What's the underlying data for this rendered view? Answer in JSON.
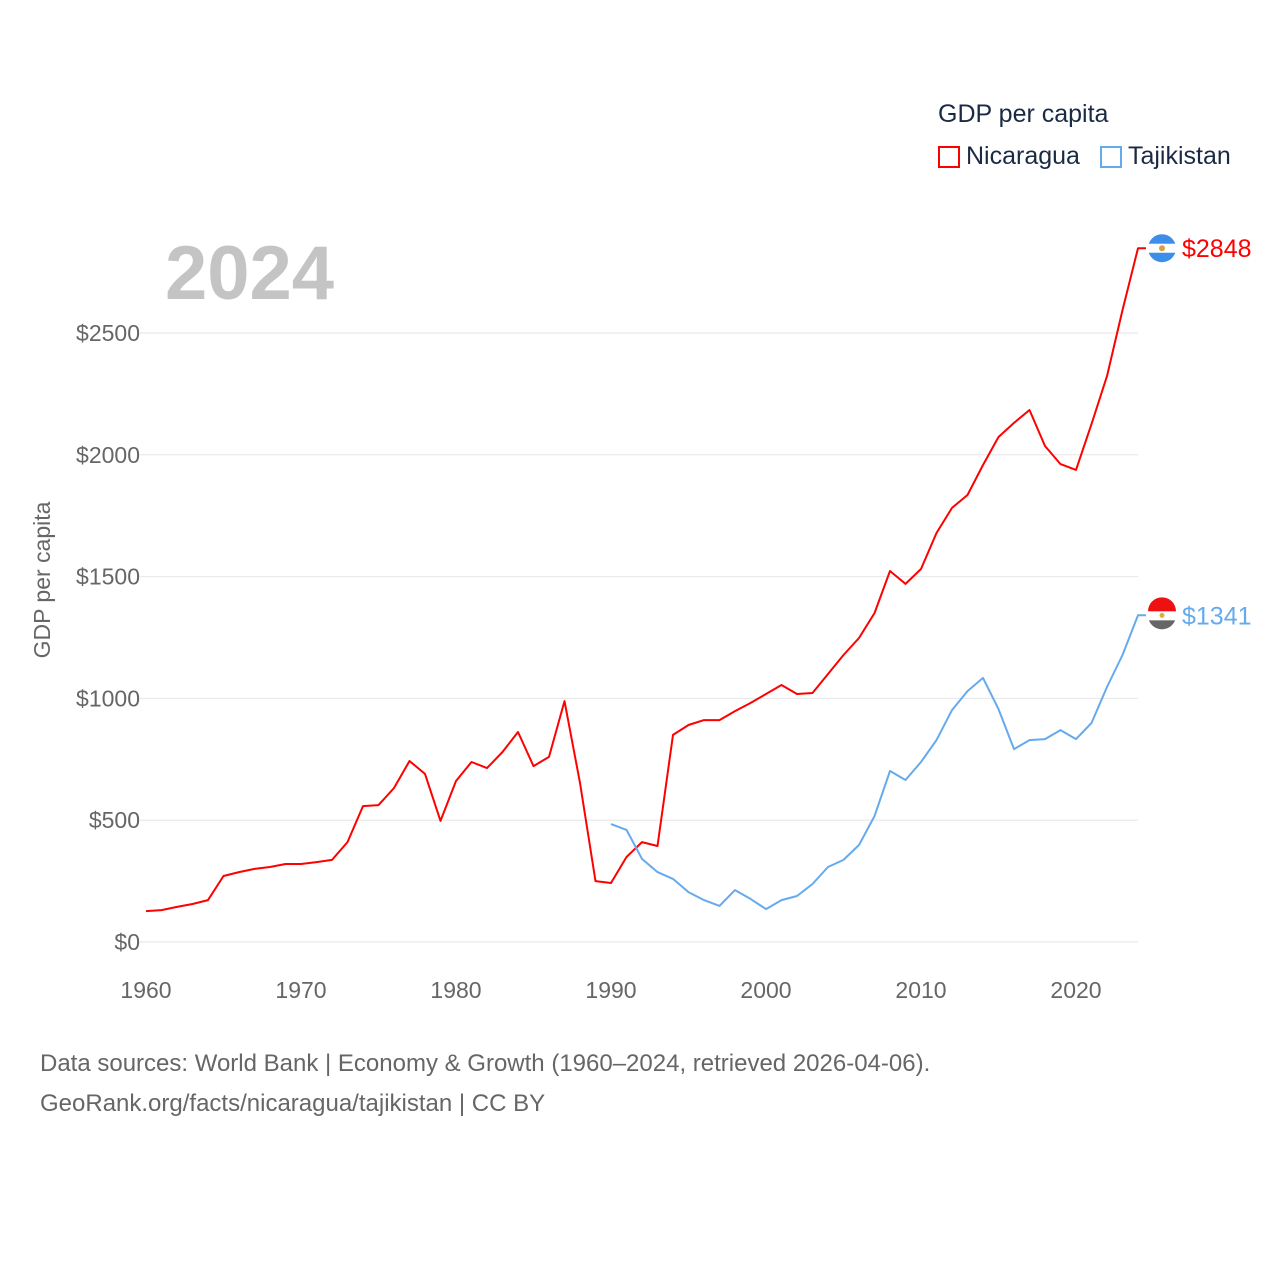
{
  "chart_data": {
    "type": "line",
    "title": "GDP per capita",
    "year_label": "2024",
    "xlabel": "",
    "ylabel": "GDP per capita",
    "xlim": [
      1960,
      2024
    ],
    "ylim": [
      0,
      2900
    ],
    "x_ticks": [
      1960,
      1970,
      1980,
      1990,
      2000,
      2010,
      2020
    ],
    "y_ticks": [
      0,
      500,
      1000,
      1500,
      2000,
      2500
    ],
    "y_tick_labels": [
      "$0",
      "$500",
      "$1000",
      "$1500",
      "$2000",
      "$2500"
    ],
    "grid": true,
    "legend_position": "top-right",
    "series": [
      {
        "name": "Nicaragua",
        "color": "#ff0000",
        "end_label": "$2848",
        "x_start": 1960,
        "values": [
          127,
          131,
          144,
          156,
          172,
          271,
          287,
          300,
          308,
          320,
          320,
          328,
          337,
          410,
          558,
          562,
          632,
          743,
          690,
          497,
          661,
          739,
          714,
          780,
          862,
          722,
          760,
          989,
          653,
          250,
          242,
          349,
          410,
          394,
          850,
          891,
          911,
          911,
          948,
          981,
          1018,
          1055,
          1018,
          1022,
          1100,
          1178,
          1248,
          1350,
          1523,
          1470,
          1531,
          1679,
          1782,
          1835,
          1958,
          2073,
          2131,
          2184,
          2036,
          1962,
          1938,
          2126,
          2323,
          2594,
          2848
        ]
      },
      {
        "name": "Tajikistan",
        "color": "#66aaee",
        "end_label": "$1341",
        "x_start": 1990,
        "values": [
          484,
          460,
          341,
          287,
          259,
          205,
          172,
          148,
          213,
          177,
          135,
          172,
          189,
          238,
          308,
          337,
          398,
          517,
          702,
          665,
          739,
          829,
          952,
          1030,
          1084,
          956,
          792,
          829,
          833,
          870,
          833,
          899,
          1047,
          1178,
          1341
        ]
      }
    ]
  },
  "footer": {
    "line1": "Data sources: World Bank | Economy & Growth (1960–2024, retrieved 2026-04-06).",
    "line2": "GeoRank.org/facts/nicaragua/tajikistan | CC BY"
  }
}
